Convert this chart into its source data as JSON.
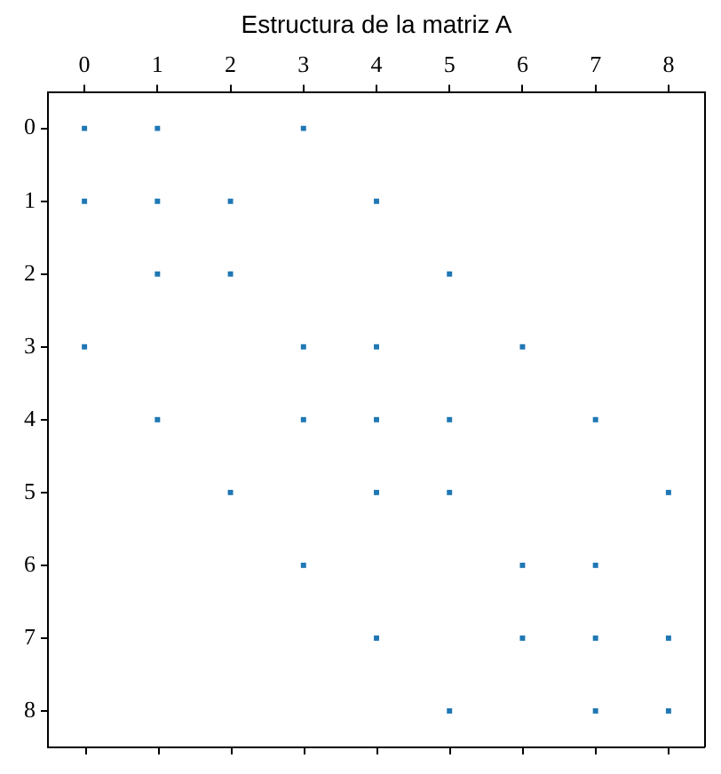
{
  "chart_data": {
    "type": "scatter",
    "title": "Estructura de la matriz A",
    "x": [
      0,
      1,
      3,
      0,
      1,
      2,
      4,
      1,
      2,
      5,
      0,
      3,
      4,
      6,
      1,
      3,
      4,
      5,
      7,
      2,
      4,
      5,
      8,
      3,
      6,
      7,
      4,
      6,
      7,
      8,
      5,
      7,
      8
    ],
    "values": [
      0,
      0,
      0,
      1,
      1,
      1,
      1,
      2,
      2,
      2,
      3,
      3,
      3,
      3,
      4,
      4,
      4,
      4,
      4,
      5,
      5,
      5,
      5,
      6,
      6,
      6,
      7,
      7,
      7,
      7,
      8,
      8,
      8
    ],
    "color": "#1f77b4",
    "marker": "square",
    "xlim": [
      -0.5,
      8.5
    ],
    "xticks": [
      0,
      1,
      2,
      3,
      4,
      5,
      6,
      7,
      8
    ],
    "ylim": [
      8.5,
      -0.5
    ],
    "yticks": [
      0,
      1,
      2,
      3,
      4,
      5,
      6,
      7,
      8
    ]
  }
}
